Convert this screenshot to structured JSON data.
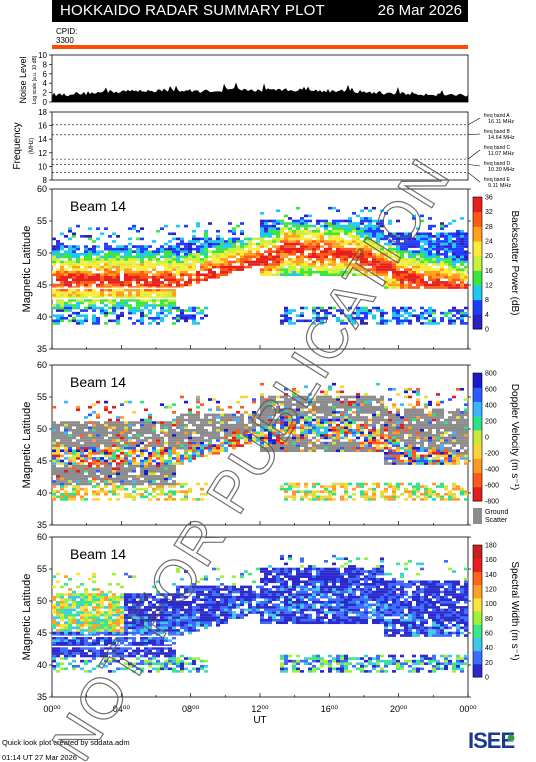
{
  "header": {
    "title": "HOKKAIDO RADAR SUMMARY PLOT",
    "date": "26 Mar 2026",
    "cpid_label": "CPID:",
    "cpid_value": "3300"
  },
  "noise_panel": {
    "ylabel": "Noise Level",
    "ylabel_sub": "Log scale [a.u. 10 dB]",
    "ticks": [
      "0",
      "2",
      "4",
      "6",
      "8",
      "10"
    ]
  },
  "freq_panel": {
    "ylabel": "Frequency",
    "ylabel_unit": "(MHz)",
    "ticks": [
      "8",
      "10",
      "12",
      "14",
      "16",
      "18"
    ],
    "bands": [
      {
        "name": "freq band A",
        "value": "16.11 MHz"
      },
      {
        "name": "freq band B",
        "value": "14.64 MHz"
      },
      {
        "name": "freq band C",
        "value": "11.07 MHz"
      },
      {
        "name": "freq band D",
        "value": "10.30 MHz"
      },
      {
        "name": "freq band E",
        "value": "9.11 MHz"
      }
    ]
  },
  "lat_ticks": [
    "35",
    "40",
    "45",
    "50",
    "55",
    "60"
  ],
  "lat_ylabel": "Magnetic Latitude",
  "panels": [
    {
      "beam": "Beam 14",
      "cbar_label": "Backscatter Power (dB)",
      "cbar_ticks": [
        "0",
        "4",
        "8",
        "12",
        "16",
        "20",
        "24",
        "28",
        "32",
        "36"
      ]
    },
    {
      "beam": "Beam 14",
      "cbar_label": "Doppler Velocity (m s⁻¹)",
      "cbar_ticks": [
        "-800",
        "-600",
        "-400",
        "-200",
        "0",
        "200",
        "400",
        "600",
        "800"
      ],
      "ground_label_1": "Ground",
      "ground_label_2": "Scatter"
    },
    {
      "beam": "Beam 14",
      "cbar_label": "Spectral Width (m s⁻¹)",
      "cbar_ticks": [
        "0",
        "20",
        "40",
        "60",
        "80",
        "100",
        "120",
        "140",
        "160",
        "180"
      ]
    }
  ],
  "xaxis": {
    "ticks": [
      "00⁰⁰",
      "04⁰⁰",
      "08⁰⁰",
      "12⁰⁰",
      "16⁰⁰",
      "20⁰⁰",
      "00⁰⁰"
    ],
    "label": "UT"
  },
  "watermark": "NOT FOR PUBLICATION",
  "footer": {
    "line1": "Quick look plot created by sddata.adm",
    "line2": "01:14 UT 27 Mar 2026"
  },
  "logo_text": "ISEE",
  "colors": {
    "orange_line": "#ff4b00",
    "ground_scatter": "#8c8c8c"
  },
  "chart_data": [
    {
      "type": "area",
      "title": "Noise Level",
      "ylim": [
        0,
        10
      ],
      "x_range_hours": [
        0,
        24
      ],
      "series": [
        {
          "values": [
            1.2,
            1.4,
            1.6,
            1.8,
            1.9,
            2.0,
            2.1,
            2.0,
            1.9,
            2.0,
            2.3,
            2.1,
            2.0,
            2.2,
            2.1,
            2.0,
            1.9,
            1.8,
            1.6,
            1.5,
            1.4,
            1.3,
            1.2,
            1.1
          ]
        }
      ]
    },
    {
      "type": "line",
      "title": "Frequency",
      "ylim": [
        8,
        18
      ],
      "series": [
        {
          "name": "freq band A",
          "values": [
            16.11
          ]
        },
        {
          "name": "freq band B",
          "values": [
            14.64
          ]
        },
        {
          "name": "freq band C",
          "values": [
            11.07
          ]
        },
        {
          "name": "freq band D",
          "values": [
            10.3
          ]
        },
        {
          "name": "freq band E",
          "values": [
            9.11
          ]
        }
      ]
    },
    {
      "type": "heatmap",
      "title": "Beam 14",
      "ylabel": "Magnetic Latitude",
      "ylim": [
        35,
        60
      ],
      "x_range_hours": [
        0,
        24
      ],
      "colorbar": "Backscatter Power (dB)",
      "zlim": [
        0,
        36
      ]
    },
    {
      "type": "heatmap",
      "title": "Beam 14",
      "ylabel": "Magnetic Latitude",
      "ylim": [
        35,
        60
      ],
      "x_range_hours": [
        0,
        24
      ],
      "colorbar": "Doppler Velocity (m s⁻¹)",
      "zlim": [
        -800,
        800
      ]
    },
    {
      "type": "heatmap",
      "title": "Beam 14",
      "ylabel": "Magnetic Latitude",
      "ylim": [
        35,
        60
      ],
      "x_range_hours": [
        0,
        24
      ],
      "colorbar": "Spectral Width (m s⁻¹)",
      "zlim": [
        0,
        180
      ]
    }
  ]
}
